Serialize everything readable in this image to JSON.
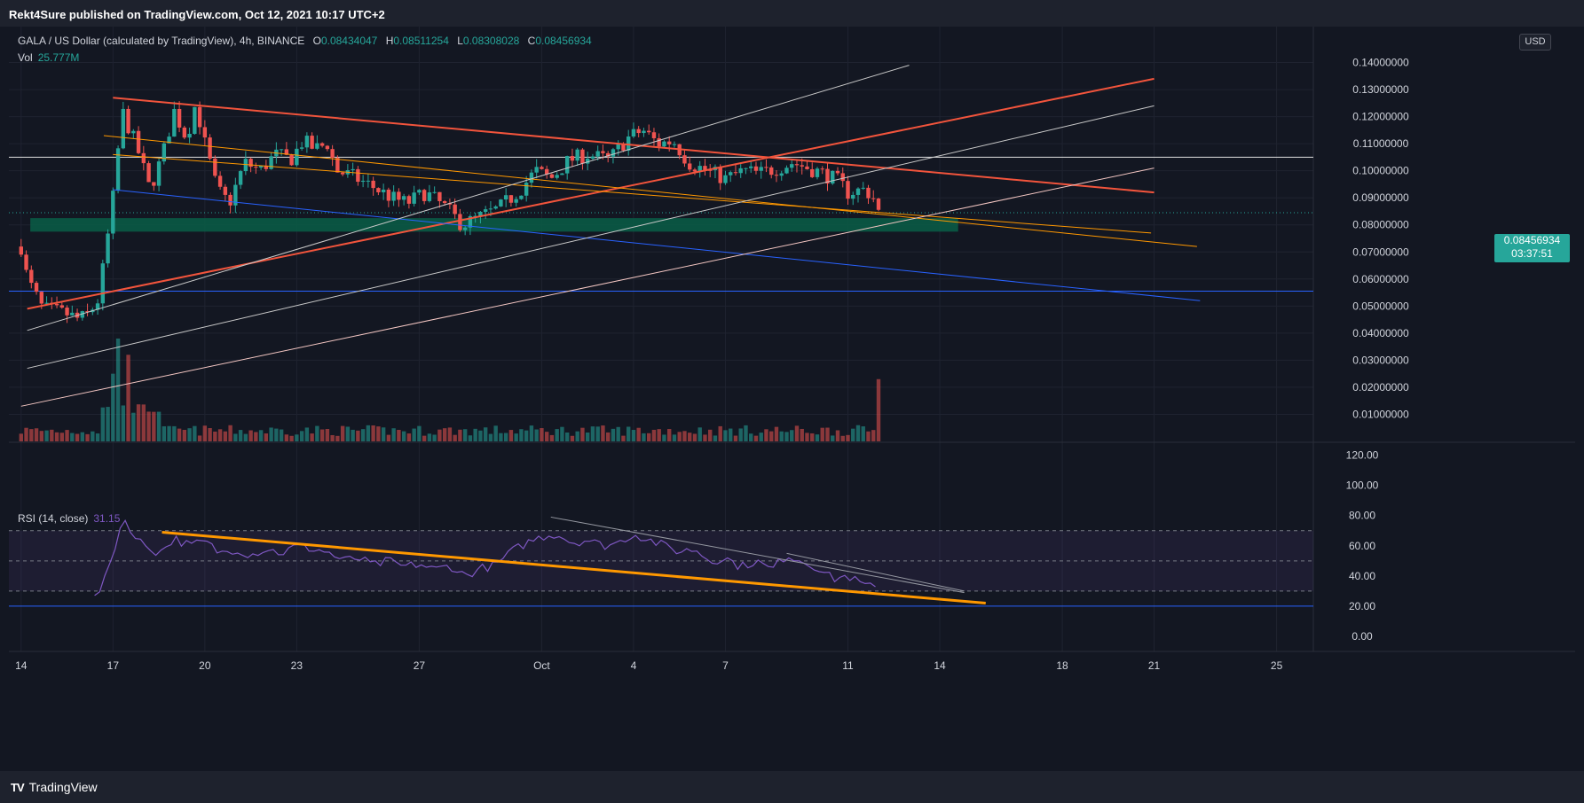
{
  "header": {
    "publisher": "Rekt4Sure published on TradingView.com, Oct 12, 2021 10:17 UTC+2"
  },
  "footer": {
    "logo_text": "TradingView",
    "logo_mark": "TV"
  },
  "colors": {
    "bg": "#131722",
    "up": "#26a69a",
    "down": "#ef5350",
    "rsi": "#7e57c2",
    "orange": "#ff9800",
    "red_line": "#f2543c",
    "blue_line": "#2962ff",
    "white_line": "#c9c9c9"
  },
  "main_legend": {
    "symbol": "GALA / US Dollar (calculated by TradingView), 4h, BINANCE",
    "o_label": "O",
    "o_value": "0.08434047",
    "h_label": "H",
    "h_value": "0.08511254",
    "l_label": "L",
    "l_value": "0.08308028",
    "c_label": "C",
    "c_value": "0.08456934"
  },
  "vol_legend": {
    "label": "Vol",
    "value": "25.777M"
  },
  "rsi_legend": {
    "label": "RSI (14, close)",
    "value": "31.15"
  },
  "currency_badge": "USD",
  "last_price": {
    "price": "0.08456934",
    "countdown": "03:37:51"
  },
  "chart_data": [
    {
      "type": "candlestick",
      "title": "GALA / US Dollar (calculated by TradingView), 4h, BINANCE",
      "ylim": [
        0.0,
        0.15
      ],
      "y_ticks": [
        "0.01000000",
        "0.02000000",
        "0.03000000",
        "0.04000000",
        "0.05000000",
        "0.06000000",
        "0.07000000",
        "0.08000000",
        "0.09000000",
        "0.10000000",
        "0.11000000",
        "0.12000000",
        "0.13000000",
        "0.14000000"
      ],
      "x_ticks": [
        {
          "label": "14",
          "day": 0
        },
        {
          "label": "17",
          "day": 3
        },
        {
          "label": "20",
          "day": 6
        },
        {
          "label": "23",
          "day": 9
        },
        {
          "label": "27",
          "day": 13
        },
        {
          "label": "Oct",
          "day": 17
        },
        {
          "label": "4",
          "day": 20
        },
        {
          "label": "7",
          "day": 23
        },
        {
          "label": "11",
          "day": 27
        },
        {
          "label": "14",
          "day": 30
        },
        {
          "label": "18",
          "day": 34
        },
        {
          "label": "21",
          "day": 37
        },
        {
          "label": "25",
          "day": 41
        }
      ],
      "xlim_days": [
        -0.4,
        42.2
      ],
      "close_anchors": [
        [
          0.0,
          0.072
        ],
        [
          0.2,
          0.06
        ],
        [
          0.7,
          0.049
        ],
        [
          1.5,
          0.047
        ],
        [
          1.9,
          0.045
        ],
        [
          2.2,
          0.047
        ],
        [
          2.5,
          0.052
        ],
        [
          2.75,
          0.069
        ],
        [
          3.0,
          0.09
        ],
        [
          3.3,
          0.122
        ],
        [
          3.8,
          0.108
        ],
        [
          4.2,
          0.093
        ],
        [
          4.6,
          0.105
        ],
        [
          5.0,
          0.122
        ],
        [
          5.4,
          0.112
        ],
        [
          5.7,
          0.125
        ],
        [
          6.0,
          0.11
        ],
        [
          6.4,
          0.093
        ],
        [
          6.8,
          0.088
        ],
        [
          7.3,
          0.103
        ],
        [
          7.8,
          0.1
        ],
        [
          8.3,
          0.106
        ],
        [
          8.8,
          0.104
        ],
        [
          9.2,
          0.111
        ],
        [
          9.6,
          0.108
        ],
        [
          10.0,
          0.11
        ],
        [
          10.3,
          0.1
        ],
        [
          10.8,
          0.098
        ],
        [
          11.5,
          0.094
        ],
        [
          12.1,
          0.09
        ],
        [
          12.6,
          0.088
        ],
        [
          13.2,
          0.092
        ],
        [
          13.9,
          0.086
        ],
        [
          14.4,
          0.08
        ],
        [
          15.0,
          0.083
        ],
        [
          15.6,
          0.086
        ],
        [
          16.3,
          0.093
        ],
        [
          16.8,
          0.1
        ],
        [
          17.3,
          0.097
        ],
        [
          17.9,
          0.104
        ],
        [
          18.5,
          0.106
        ],
        [
          19.2,
          0.104
        ],
        [
          19.8,
          0.112
        ],
        [
          20.3,
          0.115
        ],
        [
          20.8,
          0.11
        ],
        [
          21.3,
          0.111
        ],
        [
          21.8,
          0.103
        ],
        [
          22.4,
          0.1
        ],
        [
          23.0,
          0.097
        ],
        [
          23.6,
          0.1
        ],
        [
          24.1,
          0.099
        ],
        [
          24.7,
          0.101
        ],
        [
          25.2,
          0.103
        ],
        [
          25.7,
          0.101
        ],
        [
          26.2,
          0.099
        ],
        [
          26.7,
          0.096
        ],
        [
          27.0,
          0.092
        ],
        [
          27.5,
          0.093
        ],
        [
          27.8,
          0.091
        ],
        [
          28.0,
          0.0846
        ]
      ],
      "volume_spikes": [
        {
          "day": 3.0,
          "value": 0.025
        },
        {
          "day": 3.2,
          "value": 0.038
        },
        {
          "day": 3.45,
          "value": 0.032
        },
        {
          "day": 27.95,
          "value": 0.033
        },
        {
          "day": 28.05,
          "value": 0.023
        }
      ],
      "support_zone": [
        0.0775,
        0.0825
      ],
      "horizontal_lines": [
        {
          "y": 0.105,
          "color": "#e0e0e0"
        },
        {
          "y": 0.0555,
          "color": "#2962ff"
        },
        {
          "y": 0.0845,
          "color": "#26a69a",
          "dashed": true
        }
      ],
      "trend_lines": [
        {
          "d1": 3.0,
          "y1": 0.127,
          "d2": 37.0,
          "y2": 0.092,
          "color": "#f2543c",
          "width": 2
        },
        {
          "d1": 0.2,
          "y1": 0.049,
          "d2": 37.0,
          "y2": 0.134,
          "color": "#f2543c",
          "width": 2
        },
        {
          "d1": 3.0,
          "y1": 0.093,
          "d2": 38.5,
          "y2": 0.052,
          "color": "#2962ff",
          "width": 1
        },
        {
          "d1": 2.7,
          "y1": 0.113,
          "d2": 38.4,
          "y2": 0.072,
          "color": "#ff9800",
          "width": 1
        },
        {
          "d1": 3.0,
          "y1": 0.106,
          "d2": 36.9,
          "y2": 0.077,
          "color": "#ff9800",
          "width": 1
        },
        {
          "d1": 0.2,
          "y1": 0.041,
          "d2": 29.0,
          "y2": 0.139,
          "color": "#c9c9c9",
          "width": 1
        },
        {
          "d1": 0.2,
          "y1": 0.027,
          "d2": 37.0,
          "y2": 0.124,
          "color": "#c9c9c9",
          "width": 1
        },
        {
          "d1": 0.0,
          "y1": 0.013,
          "d2": 37.0,
          "y2": 0.101,
          "color": "#f4c7c3",
          "width": 1
        }
      ]
    },
    {
      "type": "line",
      "title": "RSI (14, close)",
      "ylim": [
        -10,
        128
      ],
      "y_ticks": [
        "0.00",
        "20.00",
        "40.00",
        "60.00",
        "80.00",
        "100.00",
        "120.00"
      ],
      "bands": [
        30,
        50,
        70
      ],
      "level_line": 20,
      "rsi_anchors": [
        [
          2.4,
          25
        ],
        [
          2.7,
          35
        ],
        [
          3.0,
          55
        ],
        [
          3.25,
          73
        ],
        [
          3.45,
          78
        ],
        [
          3.7,
          65
        ],
        [
          4.1,
          60
        ],
        [
          4.5,
          55
        ],
        [
          5.0,
          65
        ],
        [
          5.5,
          60
        ],
        [
          6.0,
          63
        ],
        [
          6.5,
          55
        ],
        [
          7.0,
          58
        ],
        [
          7.5,
          54
        ],
        [
          8.0,
          58
        ],
        [
          8.5,
          55
        ],
        [
          9.0,
          60
        ],
        [
          9.5,
          58
        ],
        [
          10.0,
          56
        ],
        [
          10.5,
          50
        ],
        [
          11.0,
          52
        ],
        [
          11.5,
          47
        ],
        [
          12.0,
          50
        ],
        [
          12.5,
          46
        ],
        [
          13.0,
          48
        ],
        [
          13.5,
          44
        ],
        [
          14.0,
          47
        ],
        [
          14.5,
          40
        ],
        [
          15.0,
          45
        ],
        [
          15.5,
          47
        ],
        [
          16.0,
          56
        ],
        [
          16.5,
          62
        ],
        [
          17.0,
          66
        ],
        [
          17.5,
          68
        ],
        [
          18.0,
          62
        ],
        [
          18.5,
          64
        ],
        [
          19.0,
          60
        ],
        [
          19.5,
          62
        ],
        [
          20.0,
          68
        ],
        [
          20.5,
          64
        ],
        [
          21.0,
          60
        ],
        [
          21.5,
          56
        ],
        [
          22.0,
          58
        ],
        [
          22.5,
          50
        ],
        [
          23.0,
          52
        ],
        [
          23.5,
          46
        ],
        [
          24.0,
          50
        ],
        [
          24.5,
          44
        ],
        [
          25.0,
          54
        ],
        [
          25.5,
          50
        ],
        [
          26.0,
          46
        ],
        [
          26.5,
          38
        ],
        [
          27.0,
          40
        ],
        [
          27.5,
          34
        ],
        [
          28.0,
          31.15
        ]
      ],
      "trend_lines": [
        {
          "d1": 4.6,
          "y1": 69,
          "d2": 31.5,
          "y2": 22,
          "color": "#ff9800",
          "width": 3
        },
        {
          "d1": 17.3,
          "y1": 79,
          "d2": 30.8,
          "y2": 29,
          "color": "#9598a1",
          "width": 1
        },
        {
          "d1": 25.0,
          "y1": 55,
          "d2": 30.8,
          "y2": 30,
          "color": "#9598a1",
          "width": 1
        }
      ]
    }
  ]
}
